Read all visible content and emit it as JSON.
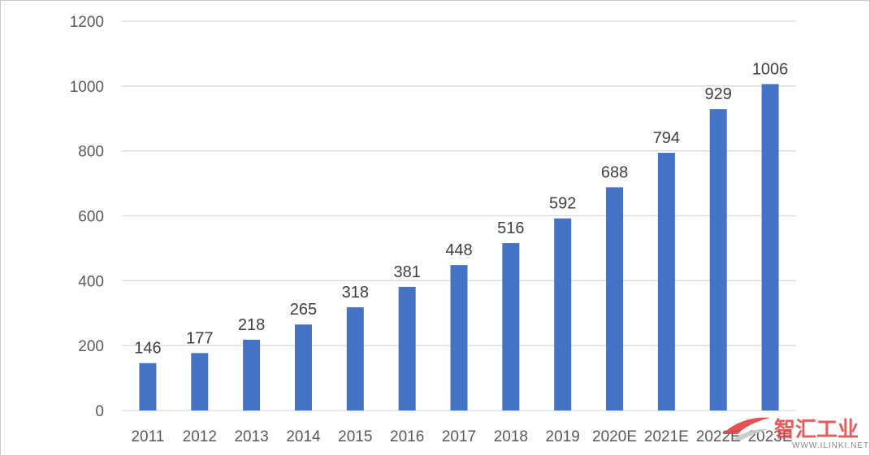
{
  "chart_data": {
    "type": "bar",
    "categories": [
      "2011",
      "2012",
      "2013",
      "2014",
      "2015",
      "2016",
      "2017",
      "2018",
      "2019",
      "2020E",
      "2021E",
      "2022E",
      "2023E"
    ],
    "values": [
      146,
      177,
      218,
      265,
      318,
      381,
      448,
      516,
      592,
      688,
      794,
      929,
      1006
    ],
    "data_labels": [
      "146",
      "177",
      "218",
      "265",
      "318",
      "381",
      "448",
      "516",
      "592",
      "688",
      "794",
      "929",
      "1006"
    ],
    "ylim": [
      0,
      1200
    ],
    "yticks": [
      0,
      200,
      400,
      600,
      800,
      1000,
      1200
    ],
    "ytick_labels": [
      "0",
      "200",
      "400",
      "600",
      "800",
      "1000",
      "1200"
    ],
    "grid": true,
    "bar_color": "#4472c4",
    "grid_color": "#d9d9d9",
    "title": "",
    "xlabel": "",
    "ylabel": ""
  },
  "watermark": {
    "text": "智汇工业",
    "subtext": "WWW.ILINKI.NET",
    "color": "#e04040"
  }
}
